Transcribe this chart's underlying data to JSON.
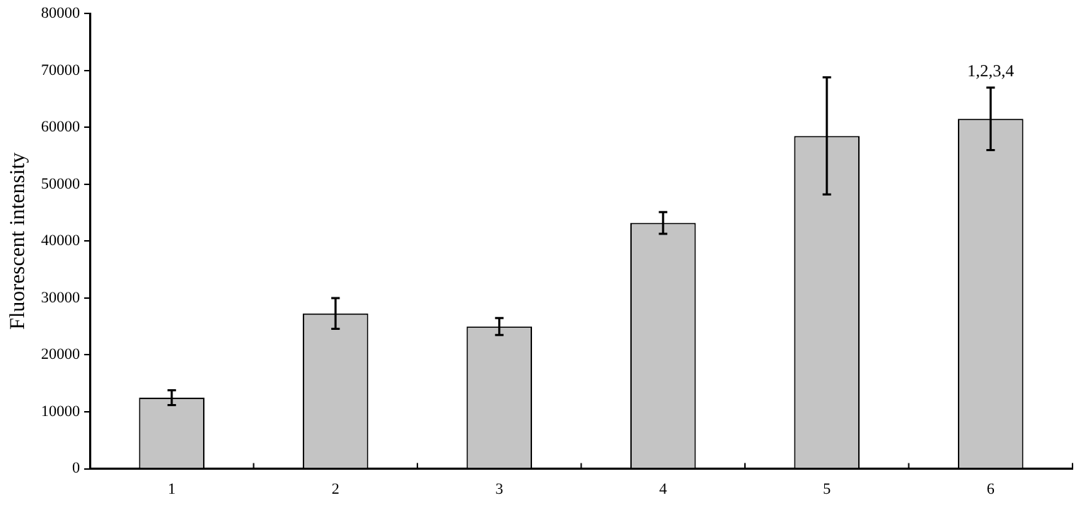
{
  "chart_data": {
    "type": "bar",
    "ylabel": "Fluorescent intensity",
    "categories": [
      "1",
      "2",
      "3",
      "4",
      "5",
      "6"
    ],
    "values": [
      12500,
      27300,
      25000,
      43200,
      58500,
      61500
    ],
    "errors": [
      1300,
      2700,
      1500,
      1900,
      10300,
      5500
    ],
    "color": "#c4c4c4",
    "ylim": [
      0,
      80000
    ],
    "yticks": [
      0,
      10000,
      20000,
      30000,
      40000,
      50000,
      60000,
      70000,
      80000
    ],
    "grid": false,
    "legend": false,
    "annotations": [
      "1,2,3,4"
    ]
  }
}
